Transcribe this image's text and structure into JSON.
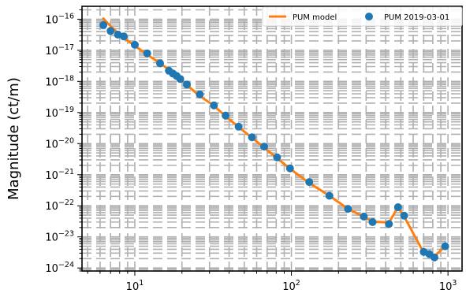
{
  "chart_data": {
    "type": "line",
    "title": "",
    "xlabel": "",
    "ylabel": "Magnitude (ct/m)",
    "xscale": "log",
    "yscale": "log",
    "xlim": [
      4.6,
      1230
    ],
    "ylim": [
      8e-25,
      2.6e-16
    ],
    "grid": true,
    "legend_position": "top-right",
    "x_ticks": [
      {
        "value": 10,
        "base": "10",
        "exp": "1"
      },
      {
        "value": 100,
        "base": "10",
        "exp": "2"
      },
      {
        "value": 1000,
        "base": "10",
        "exp": "3"
      }
    ],
    "y_ticks": [
      {
        "value": 1e-16,
        "base": "10",
        "exp": "−16"
      },
      {
        "value": 1e-17,
        "base": "10",
        "exp": "−17"
      },
      {
        "value": 1e-18,
        "base": "10",
        "exp": "−18"
      },
      {
        "value": 1e-19,
        "base": "10",
        "exp": "−19"
      },
      {
        "value": 1e-20,
        "base": "10",
        "exp": "−20"
      },
      {
        "value": 1e-21,
        "base": "10",
        "exp": "−21"
      },
      {
        "value": 1e-22,
        "base": "10",
        "exp": "−22"
      },
      {
        "value": 1e-23,
        "base": "10",
        "exp": "−23"
      },
      {
        "value": 1e-24,
        "base": "10",
        "exp": "−24"
      }
    ],
    "series": [
      {
        "name": "PUM model",
        "kind": "line",
        "color": "#ff7f0e",
        "x": [
          6.3,
          7.0,
          7.8,
          8.5,
          10.0,
          12.0,
          14.5,
          16.5,
          17.5,
          18.5,
          19.5,
          21.5,
          26,
          32,
          38,
          46,
          56,
          67,
          81,
          98,
          130,
          175,
          230,
          290,
          330,
          420,
          480,
          525,
          700,
          760,
          820,
          960
        ],
        "y": [
          1.05e-16,
          6e-17,
          3.6e-17,
          2.5e-17,
          1.4e-17,
          7.3e-18,
          3.8e-18,
          2.4e-18,
          1.8e-18,
          1.45e-18,
          1.2e-18,
          7.6e-19,
          3.4e-19,
          1.65e-19,
          7.6e-20,
          3.4e-20,
          1.55e-20,
          7.4e-21,
          3.4e-21,
          1.55e-21,
          5.4e-22,
          2.1e-22,
          8e-23,
          4.4e-23,
          3.1e-23,
          2.9e-23,
          9e-23,
          4.5e-23,
          3.1e-24,
          2.8e-24,
          2.4e-24,
          5e-24
        ]
      },
      {
        "name": "PUM 2019-03-01",
        "kind": "scatter",
        "color": "#1f77b4",
        "x": [
          6.3,
          7.0,
          7.8,
          8.5,
          10.0,
          12.0,
          14.5,
          16.5,
          17.5,
          18.5,
          19.5,
          21.5,
          26,
          32,
          38,
          46,
          56,
          67,
          81,
          98,
          130,
          175,
          230,
          290,
          330,
          420,
          480,
          525,
          700,
          760,
          820,
          960
        ],
        "y": [
          6.5e-17,
          4.2e-17,
          3.2e-17,
          2.8e-17,
          1.5e-17,
          8e-18,
          3.8e-18,
          2.2e-18,
          1.8e-18,
          1.5e-18,
          1.2e-18,
          8e-19,
          3.8e-19,
          1.7e-19,
          8e-20,
          3.5e-20,
          1.6e-20,
          8e-21,
          3.6e-21,
          1.6e-21,
          5.8e-22,
          2.1e-22,
          8e-23,
          4.5e-23,
          3e-23,
          2.6e-23,
          9e-23,
          4.8e-23,
          3.3e-24,
          2.8e-24,
          2.2e-24,
          5e-24
        ]
      }
    ]
  }
}
